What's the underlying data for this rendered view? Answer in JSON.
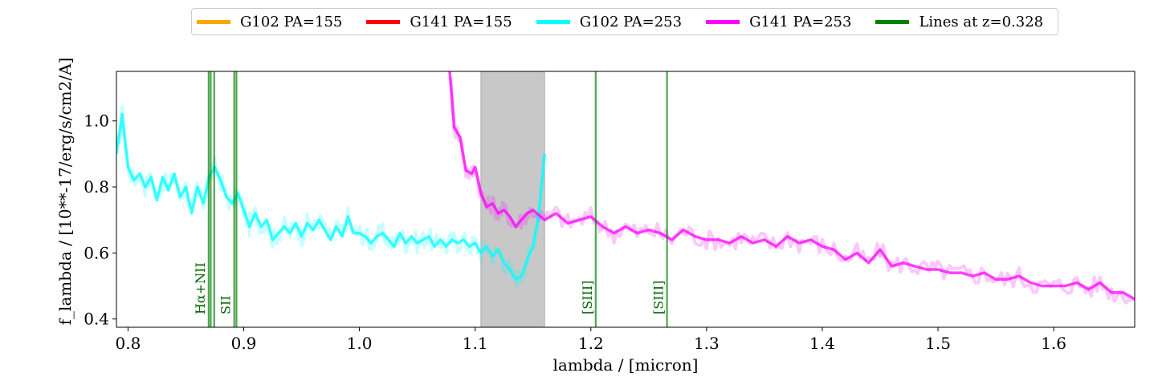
{
  "chart_data": {
    "type": "line",
    "xlabel": "lambda / [micron]",
    "ylabel": "f_lambda / [10**-17/erg/s/cm2/A]",
    "xlim": [
      0.79,
      1.67
    ],
    "ylim": [
      0.375,
      1.15
    ],
    "xticks": [
      "0.8",
      "0.9",
      "1.0",
      "1.1",
      "1.2",
      "1.3",
      "1.4",
      "1.5",
      "1.6"
    ],
    "yticks": [
      "0.4",
      "0.6",
      "0.8",
      "1.0"
    ],
    "legend_placement": "top-center, outside plot",
    "legend": [
      {
        "label": "G102 PA=155",
        "color": "#ffa500"
      },
      {
        "label": "G141 PA=155",
        "color": "#ff0000"
      },
      {
        "label": "G102 PA=253",
        "color": "#00ffff"
      },
      {
        "label": "G141 PA=253",
        "color": "#ff00ff"
      },
      {
        "label": "Lines at z=0.328",
        "color": "#008000"
      }
    ],
    "shaded_region": {
      "x": [
        1.105,
        1.16
      ],
      "color": "#c8c8c8"
    },
    "emission_lines": [
      {
        "label": "Hα+NII",
        "x": [
          0.8697,
          0.8715,
          0.8745
        ]
      },
      {
        "label": "SII",
        "x": [
          0.8918,
          0.8937
        ]
      },
      {
        "label": "[SIII]",
        "x": [
          1.2042
        ]
      },
      {
        "label": "[SIII]",
        "x": [
          1.2658
        ]
      }
    ],
    "series": [
      {
        "name": "G102 PA=253",
        "color": "#00ffff",
        "x": [
          0.79,
          0.795,
          0.8,
          0.805,
          0.81,
          0.815,
          0.82,
          0.825,
          0.83,
          0.835,
          0.84,
          0.845,
          0.85,
          0.855,
          0.86,
          0.865,
          0.87,
          0.875,
          0.88,
          0.885,
          0.89,
          0.895,
          0.9,
          0.905,
          0.91,
          0.915,
          0.92,
          0.925,
          0.93,
          0.935,
          0.94,
          0.945,
          0.95,
          0.955,
          0.96,
          0.965,
          0.97,
          0.975,
          0.98,
          0.985,
          0.99,
          0.995,
          1.0,
          1.005,
          1.01,
          1.015,
          1.02,
          1.025,
          1.03,
          1.035,
          1.04,
          1.045,
          1.05,
          1.055,
          1.06,
          1.065,
          1.07,
          1.075,
          1.08,
          1.085,
          1.09,
          1.095,
          1.1,
          1.105,
          1.11,
          1.115,
          1.12,
          1.125,
          1.13,
          1.135,
          1.14,
          1.145,
          1.15,
          1.155,
          1.16
        ],
        "y": [
          0.9,
          1.02,
          0.86,
          0.82,
          0.84,
          0.8,
          0.83,
          0.76,
          0.83,
          0.79,
          0.84,
          0.77,
          0.8,
          0.72,
          0.8,
          0.75,
          0.83,
          0.86,
          0.82,
          0.77,
          0.75,
          0.78,
          0.73,
          0.68,
          0.72,
          0.68,
          0.7,
          0.64,
          0.66,
          0.68,
          0.66,
          0.69,
          0.65,
          0.69,
          0.67,
          0.7,
          0.67,
          0.64,
          0.68,
          0.65,
          0.71,
          0.66,
          0.66,
          0.65,
          0.63,
          0.65,
          0.66,
          0.64,
          0.62,
          0.66,
          0.63,
          0.65,
          0.63,
          0.64,
          0.65,
          0.62,
          0.64,
          0.62,
          0.64,
          0.63,
          0.64,
          0.62,
          0.63,
          0.6,
          0.62,
          0.59,
          0.61,
          0.57,
          0.55,
          0.52,
          0.53,
          0.58,
          0.62,
          0.72,
          0.9
        ]
      },
      {
        "name": "G141 PA=253",
        "color": "#ff00ff",
        "x": [
          1.078,
          1.082,
          1.087,
          1.092,
          1.097,
          1.1,
          1.105,
          1.11,
          1.115,
          1.12,
          1.125,
          1.13,
          1.135,
          1.14,
          1.145,
          1.15,
          1.16,
          1.17,
          1.18,
          1.19,
          1.2,
          1.21,
          1.22,
          1.23,
          1.24,
          1.25,
          1.26,
          1.27,
          1.28,
          1.29,
          1.3,
          1.31,
          1.32,
          1.33,
          1.34,
          1.35,
          1.36,
          1.37,
          1.38,
          1.39,
          1.4,
          1.41,
          1.42,
          1.43,
          1.44,
          1.45,
          1.46,
          1.47,
          1.48,
          1.49,
          1.5,
          1.51,
          1.52,
          1.53,
          1.54,
          1.55,
          1.56,
          1.57,
          1.58,
          1.59,
          1.6,
          1.61,
          1.62,
          1.63,
          1.64,
          1.65,
          1.66,
          1.67
        ],
        "y": [
          1.15,
          0.98,
          0.95,
          0.85,
          0.84,
          0.86,
          0.78,
          0.74,
          0.75,
          0.72,
          0.73,
          0.71,
          0.68,
          0.7,
          0.72,
          0.73,
          0.7,
          0.72,
          0.69,
          0.7,
          0.71,
          0.68,
          0.66,
          0.68,
          0.66,
          0.67,
          0.66,
          0.64,
          0.67,
          0.65,
          0.64,
          0.64,
          0.63,
          0.65,
          0.63,
          0.64,
          0.62,
          0.65,
          0.63,
          0.64,
          0.62,
          0.61,
          0.58,
          0.6,
          0.57,
          0.61,
          0.56,
          0.57,
          0.56,
          0.55,
          0.55,
          0.54,
          0.54,
          0.53,
          0.54,
          0.52,
          0.52,
          0.53,
          0.51,
          0.5,
          0.5,
          0.5,
          0.51,
          0.49,
          0.51,
          0.48,
          0.48,
          0.46
        ]
      }
    ]
  }
}
